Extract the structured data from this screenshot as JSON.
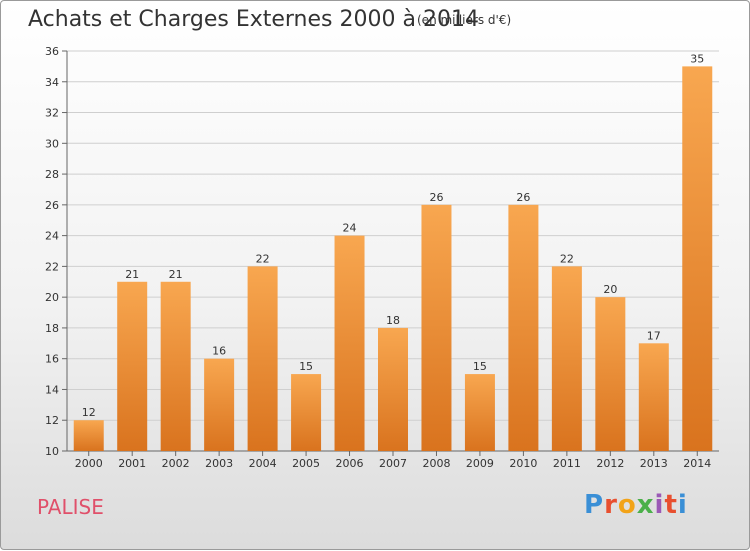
{
  "chart_data": {
    "type": "bar",
    "title": "Achats et Charges Externes 2000 à 2014",
    "subtitle": "(en milliers d'€)",
    "categories": [
      "2000",
      "2001",
      "2002",
      "2003",
      "2004",
      "2005",
      "2006",
      "2007",
      "2008",
      "2009",
      "2010",
      "2011",
      "2012",
      "2013",
      "2014"
    ],
    "values": [
      12,
      21,
      21,
      16,
      22,
      15,
      24,
      18,
      26,
      15,
      26,
      22,
      20,
      17,
      35
    ],
    "ylim": [
      10,
      36
    ],
    "yticks": [
      10,
      12,
      14,
      16,
      18,
      20,
      22,
      24,
      26,
      28,
      30,
      32,
      34,
      36
    ],
    "grid": true,
    "bar_color_top": "#f8a750",
    "bar_color_bottom": "#d9731e"
  },
  "location_label": "PALISE",
  "logo": {
    "text": "Proxiti",
    "colors": [
      "#3a8fd6",
      "#e84f2f",
      "#f2a318",
      "#4bb04a",
      "#9b59b6",
      "#e84f2f",
      "#3a8fd6"
    ]
  }
}
